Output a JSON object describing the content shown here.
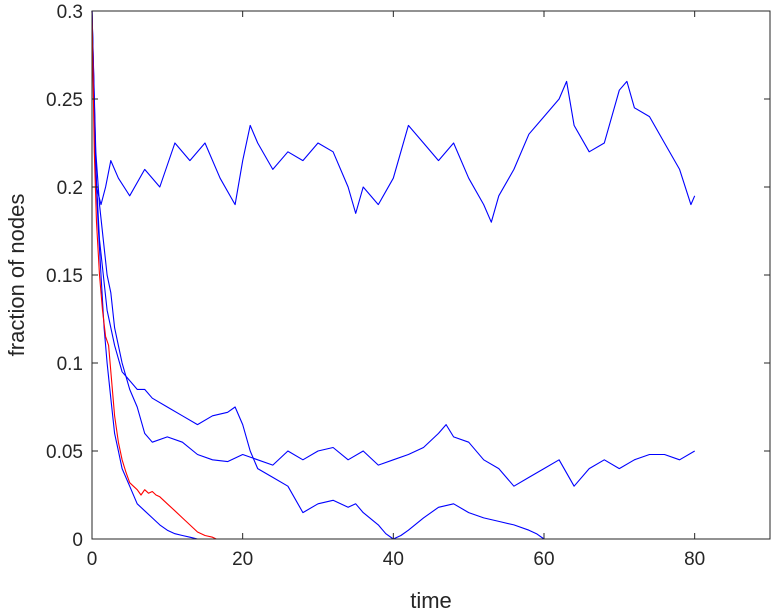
{
  "chart_data": {
    "type": "line",
    "title": "",
    "xlabel": "time",
    "ylabel": "fraction of nodes",
    "xlim": [
      0,
      90
    ],
    "ylim": [
      0,
      0.3
    ],
    "xticks": [
      0,
      20,
      40,
      60,
      80
    ],
    "xtick_labels": [
      "0",
      "20",
      "40",
      "60",
      "80"
    ],
    "yticks": [
      0,
      0.05,
      0.1,
      0.15,
      0.2,
      0.25,
      0.3
    ],
    "ytick_labels": [
      "0",
      "0.05",
      "0.1",
      "0.15",
      "0.2",
      "0.25",
      "0.3"
    ],
    "grid": false,
    "box": true,
    "series": [
      {
        "color": "#0000ff",
        "x": [
          0,
          0.6,
          1.2,
          1.8,
          2.5,
          3.5,
          5,
          7,
          9,
          11,
          13,
          15,
          17,
          19,
          20,
          21,
          22,
          24,
          26,
          28,
          30,
          32,
          34,
          35,
          36,
          38,
          40,
          42,
          44,
          46,
          48,
          50,
          52,
          53,
          54,
          56,
          58,
          60,
          62,
          63,
          64,
          66,
          68,
          70,
          71,
          72,
          74,
          76,
          78,
          79.5,
          80
        ],
        "y": [
          0.3,
          0.2,
          0.19,
          0.2,
          0.215,
          0.205,
          0.195,
          0.21,
          0.2,
          0.225,
          0.215,
          0.225,
          0.205,
          0.19,
          0.215,
          0.235,
          0.225,
          0.21,
          0.22,
          0.215,
          0.225,
          0.22,
          0.2,
          0.185,
          0.2,
          0.19,
          0.205,
          0.235,
          0.225,
          0.215,
          0.225,
          0.205,
          0.19,
          0.18,
          0.195,
          0.21,
          0.23,
          0.24,
          0.25,
          0.26,
          0.235,
          0.22,
          0.225,
          0.255,
          0.26,
          0.245,
          0.24,
          0.225,
          0.21,
          0.19,
          0.195
        ]
      },
      {
        "color": "#0000ff",
        "x": [
          0,
          0.5,
          1,
          1.5,
          2,
          2.5,
          3,
          4,
          5,
          6,
          7,
          8,
          10,
          12,
          14,
          16,
          18,
          20,
          22,
          24,
          26,
          28,
          30,
          32,
          34,
          36,
          38,
          40,
          42,
          44,
          46,
          47,
          48,
          50,
          52,
          54,
          56,
          58,
          60,
          62,
          64,
          66,
          68,
          70,
          72,
          74,
          76,
          78,
          80
        ],
        "y": [
          0.3,
          0.22,
          0.19,
          0.17,
          0.15,
          0.14,
          0.12,
          0.1,
          0.085,
          0.075,
          0.06,
          0.055,
          0.058,
          0.055,
          0.048,
          0.045,
          0.044,
          0.048,
          0.045,
          0.042,
          0.05,
          0.045,
          0.05,
          0.052,
          0.045,
          0.05,
          0.042,
          0.045,
          0.048,
          0.052,
          0.06,
          0.065,
          0.058,
          0.055,
          0.045,
          0.04,
          0.03,
          0.035,
          0.04,
          0.045,
          0.03,
          0.04,
          0.045,
          0.04,
          0.045,
          0.048,
          0.048,
          0.045,
          0.05
        ]
      },
      {
        "color": "#0000ff",
        "x": [
          0,
          0.5,
          1,
          1.5,
          2,
          3,
          4,
          5,
          6,
          7,
          8,
          10,
          12,
          14,
          16,
          18,
          19,
          20,
          21,
          22,
          24,
          26,
          28,
          30,
          32,
          34,
          35,
          36,
          38,
          39,
          40,
          41,
          42,
          44,
          46,
          48,
          50,
          52,
          54,
          56,
          58,
          59,
          60,
          62,
          70,
          80
        ],
        "y": [
          0.3,
          0.21,
          0.17,
          0.15,
          0.13,
          0.11,
          0.095,
          0.09,
          0.085,
          0.085,
          0.08,
          0.075,
          0.07,
          0.065,
          0.07,
          0.072,
          0.075,
          0.065,
          0.05,
          0.04,
          0.035,
          0.03,
          0.015,
          0.02,
          0.022,
          0.018,
          0.02,
          0.015,
          0.008,
          0.003,
          0.0,
          0.002,
          0.005,
          0.012,
          0.018,
          0.02,
          0.015,
          0.012,
          0.01,
          0.008,
          0.005,
          0.003,
          0.0,
          0.0,
          0.0,
          0.0
        ]
      },
      {
        "color": "#0000ff",
        "x": [
          0,
          0.4,
          0.8,
          1.2,
          1.6,
          2,
          2.5,
          3,
          3.5,
          4,
          5,
          6,
          7,
          8,
          9,
          10,
          11,
          12,
          13,
          14,
          15,
          20,
          30,
          40,
          50,
          60,
          70,
          80
        ],
        "y": [
          0.3,
          0.22,
          0.18,
          0.15,
          0.12,
          0.1,
          0.08,
          0.06,
          0.05,
          0.04,
          0.03,
          0.02,
          0.016,
          0.012,
          0.008,
          0.005,
          0.003,
          0.002,
          0.001,
          0.0,
          0.0,
          0.0,
          0.0,
          0.0,
          0.0,
          0.0,
          0.0,
          0.0
        ]
      },
      {
        "color": "#ff0000",
        "x": [
          0,
          0.3,
          0.6,
          1,
          1.4,
          1.8,
          2.2,
          2.6,
          3,
          3.5,
          4,
          4.5,
          5,
          5.5,
          6,
          6.5,
          7,
          7.5,
          8,
          8.5,
          9,
          10,
          11,
          12,
          13,
          14,
          15,
          16,
          16.5
        ],
        "y": [
          0.3,
          0.22,
          0.18,
          0.15,
          0.13,
          0.115,
          0.11,
          0.09,
          0.07,
          0.055,
          0.045,
          0.038,
          0.032,
          0.03,
          0.028,
          0.025,
          0.028,
          0.026,
          0.027,
          0.025,
          0.024,
          0.02,
          0.016,
          0.012,
          0.008,
          0.004,
          0.002,
          0.001,
          0.0
        ]
      }
    ]
  }
}
